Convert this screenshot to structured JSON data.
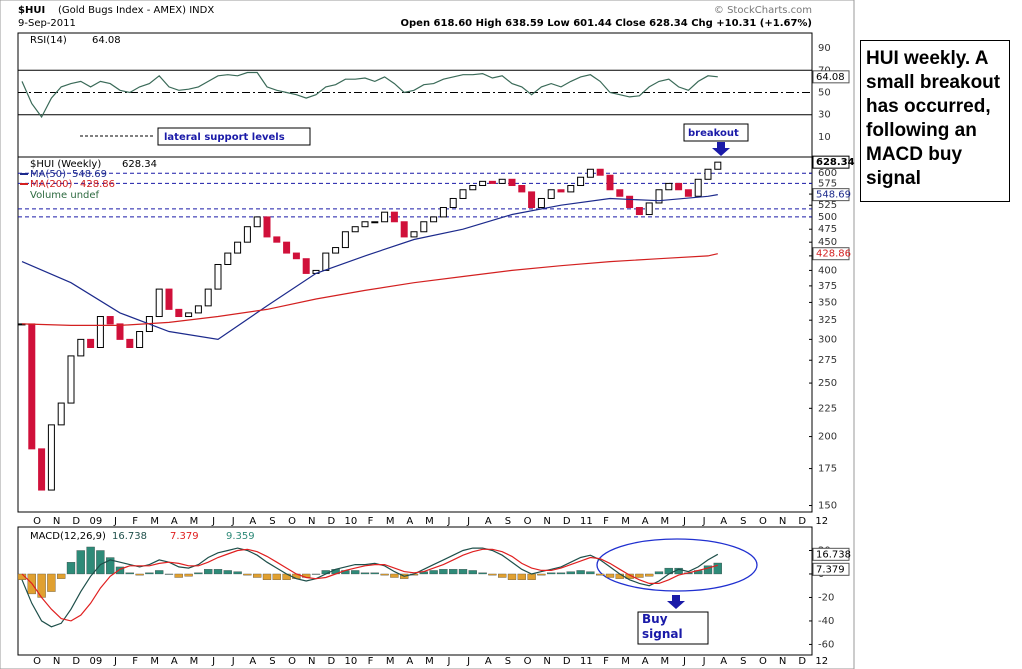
{
  "header": {
    "title": "$HUI",
    "subtitle": "(Gold Bugs Index - AMEX) INDX",
    "date": "9-Sep-2011",
    "ohlc": "Open 618.60 High 638.59 Low 601.44 Close 628.34 Chg +10.31 (+1.67%)",
    "source": "© StockCharts.com"
  },
  "note": "HUI weekly. A small breakout has occurred, following an MACD buy signal",
  "annotations": {
    "support": "lateral support levels",
    "breakout": "breakout",
    "buy": "Buy signal"
  },
  "month_labels": [
    "O",
    "N",
    "D",
    "09",
    "J",
    "F",
    "M",
    "A",
    "M",
    "J",
    "J",
    "A",
    "S",
    "O",
    "N",
    "D",
    "10",
    "F",
    "M",
    "A",
    "M",
    "J",
    "J",
    "A",
    "S",
    "O",
    "N",
    "D",
    "11",
    "F",
    "M",
    "A",
    "M",
    "J",
    "J",
    "A",
    "S",
    "O",
    "N",
    "D",
    "12"
  ],
  "chart_data": [
    {
      "type": "line",
      "label": "RSI(14)",
      "ylim": [
        -8,
        103.5
      ],
      "yticks": [
        10,
        30,
        50,
        70,
        90
      ],
      "series": [
        {
          "name": "RSI(14)",
          "color": "#3a6a58",
          "values": [
            60,
            40,
            28,
            45,
            55,
            58,
            60,
            55,
            60,
            58,
            52,
            50,
            55,
            58,
            65,
            55,
            52,
            53,
            55,
            60,
            65,
            66,
            65,
            68,
            68,
            55,
            52,
            50,
            48,
            45,
            48,
            55,
            57,
            62,
            62,
            63,
            60,
            64,
            58,
            50,
            52,
            57,
            58,
            62,
            64,
            66,
            66,
            67,
            63,
            65,
            58,
            55,
            48,
            55,
            58,
            55,
            60,
            64,
            66,
            60,
            50,
            48,
            46,
            47,
            55,
            60,
            62,
            55,
            52,
            60,
            65,
            64.08
          ]
        }
      ]
    },
    {
      "type": "candlestick",
      "label": "$HUI (Weekly)",
      "log_scale": true,
      "ylim": [
        146,
        642
      ],
      "yticks": [
        150,
        175,
        200,
        225,
        250,
        275,
        300,
        325,
        350,
        375,
        400,
        425,
        450,
        475,
        500,
        525,
        550,
        575,
        600
      ],
      "support_levels": [
        600,
        575,
        517,
        500
      ],
      "support_color": "#1a1aa8",
      "up_color": "#000000",
      "down_color": "#d0103a",
      "values": [
        320,
        190,
        160,
        210,
        230,
        280,
        300,
        290,
        330,
        320,
        300,
        290,
        310,
        330,
        370,
        340,
        330,
        335,
        345,
        370,
        410,
        430,
        450,
        480,
        500,
        460,
        450,
        430,
        420,
        395,
        400,
        430,
        440,
        470,
        480,
        490,
        490,
        510,
        490,
        460,
        470,
        490,
        500,
        520,
        540,
        560,
        570,
        580,
        575,
        585,
        570,
        555,
        520,
        540,
        560,
        555,
        570,
        590,
        610,
        595,
        560,
        545,
        520,
        505,
        530,
        560,
        575,
        560,
        545,
        585,
        610,
        628.34
      ],
      "ma_x": [
        0,
        5,
        10,
        15,
        20,
        25,
        30,
        35,
        40,
        45,
        50,
        55,
        60,
        65,
        70,
        71
      ],
      "series": [
        {
          "name": "MA(50)",
          "color": "#1c2a8c",
          "values": [
            415,
            380,
            335,
            310,
            300,
            345,
            395,
            425,
            455,
            475,
            505,
            525,
            540,
            535,
            545,
            548.69
          ]
        },
        {
          "name": "MA(200)",
          "color": "#d32020",
          "values": [
            320,
            318,
            318,
            322,
            330,
            340,
            355,
            368,
            380,
            390,
            400,
            408,
            415,
            420,
            425,
            428.86
          ]
        }
      ],
      "volume_label": "Volume undef"
    },
    {
      "type": "macd",
      "label": "MACD(12,26,9)",
      "ylim": [
        -69,
        40
      ],
      "yticks": [
        -60,
        -40,
        -20,
        0,
        20
      ],
      "series": [
        {
          "name": "MACD",
          "color": "#1e4f4a",
          "values": [
            -5,
            -25,
            -40,
            -45,
            -42,
            -30,
            -15,
            -2,
            8,
            12,
            10,
            8,
            6,
            8,
            12,
            10,
            6,
            5,
            8,
            14,
            18,
            20,
            22,
            20,
            16,
            10,
            5,
            0,
            -4,
            -6,
            -4,
            0,
            4,
            6,
            8,
            8,
            9,
            7,
            2,
            -2,
            0,
            4,
            8,
            12,
            16,
            20,
            22,
            22,
            20,
            16,
            10,
            4,
            0,
            2,
            4,
            6,
            10,
            14,
            16,
            12,
            6,
            0,
            -5,
            -8,
            -10,
            -6,
            0,
            4,
            2,
            6,
            12,
            16.738
          ]
        },
        {
          "name": "Signal",
          "color": "#e02020",
          "values": [
            0,
            -8,
            -20,
            -30,
            -38,
            -40,
            -35,
            -25,
            -12,
            -2,
            4,
            7,
            7,
            7,
            9,
            10,
            9,
            7,
            7,
            10,
            14,
            17,
            20,
            21,
            19,
            15,
            10,
            5,
            0,
            -3,
            -4,
            -3,
            0,
            3,
            5,
            7,
            8,
            8,
            5,
            2,
            1,
            2,
            5,
            8,
            12,
            16,
            19,
            21,
            21,
            19,
            15,
            9,
            5,
            3,
            3,
            5,
            8,
            11,
            14,
            13,
            9,
            4,
            -1,
            -5,
            -8,
            -8,
            -5,
            -1,
            1,
            3,
            5,
            7.379
          ]
        }
      ],
      "histogram": {
        "pos_color": "#2e8a78",
        "neg_color": "#e0a030",
        "values": [
          -5,
          -17,
          -20,
          -15,
          -4,
          10,
          20,
          23,
          20,
          14,
          6,
          1,
          -1,
          1,
          3,
          0,
          -3,
          -2,
          1,
          4,
          4,
          3,
          2,
          -1,
          -3,
          -5,
          -5,
          -5,
          -4,
          -3,
          0,
          3,
          4,
          3,
          3,
          1,
          1,
          -1,
          -3,
          -4,
          -1,
          2,
          3,
          4,
          4,
          4,
          3,
          1,
          -1,
          -3,
          -5,
          -5,
          -5,
          -1,
          1,
          1,
          2,
          3,
          2,
          -1,
          -3,
          -4,
          -4,
          -3,
          -2,
          2,
          5,
          5,
          1,
          3,
          7,
          9.359
        ]
      }
    }
  ]
}
